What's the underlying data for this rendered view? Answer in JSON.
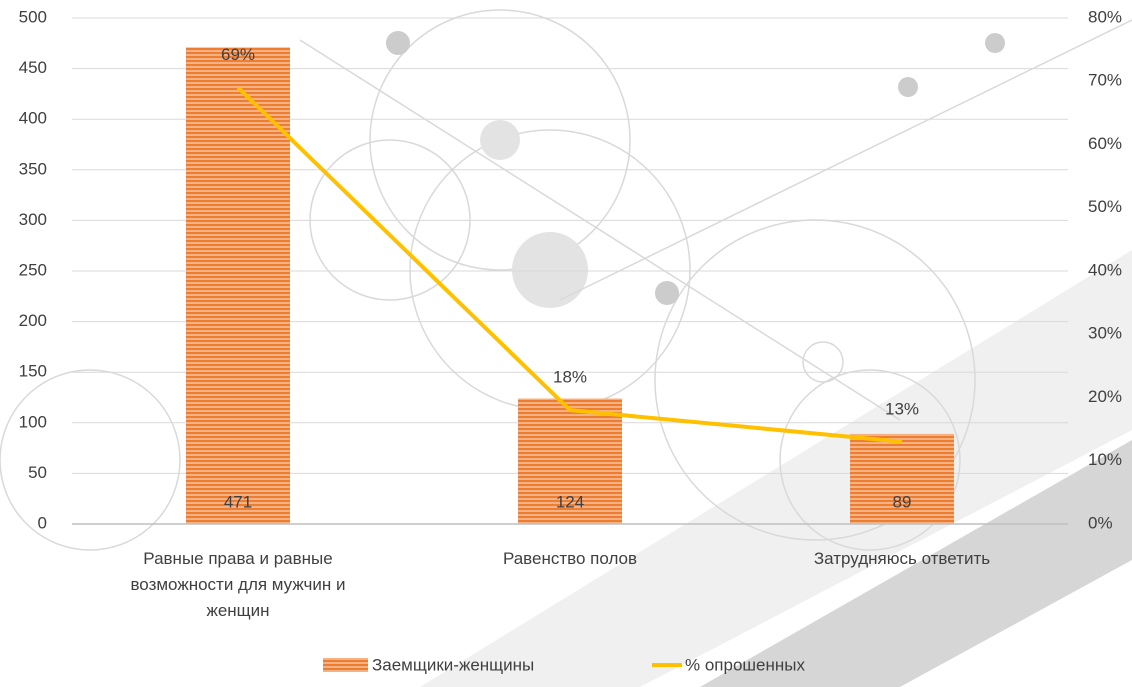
{
  "chart_data": {
    "type": "bar",
    "categories": [
      "Равные права и равные возможности для мужчин и женщин",
      "Равенство полов",
      "Затрудняюсь ответить"
    ],
    "series": [
      {
        "name": "Заемщики-женщины",
        "type": "bar",
        "color": "#ed7d31",
        "values": [
          471,
          124,
          89
        ]
      },
      {
        "name": "% опрошенных",
        "type": "line",
        "color": "#ffc000",
        "axis": "y2",
        "values": [
          69,
          18,
          13
        ],
        "value_labels": [
          "69%",
          "18%",
          "13%"
        ]
      }
    ],
    "ylim": [
      0,
      500
    ],
    "yticks": [
      0,
      50,
      100,
      150,
      200,
      250,
      300,
      350,
      400,
      450,
      500
    ],
    "y2lim": [
      0,
      80
    ],
    "y2ticks": [
      {
        "value": 0,
        "label": "0%"
      },
      {
        "value": 10,
        "label": "10%"
      },
      {
        "value": 20,
        "label": "20%"
      },
      {
        "value": 30,
        "label": "30%"
      },
      {
        "value": 40,
        "label": "40%"
      },
      {
        "value": 50,
        "label": "50%"
      },
      {
        "value": 60,
        "label": "60%"
      },
      {
        "value": 70,
        "label": "70%"
      },
      {
        "value": 80,
        "label": "80%"
      }
    ],
    "grid": true,
    "legend": "bottom"
  }
}
